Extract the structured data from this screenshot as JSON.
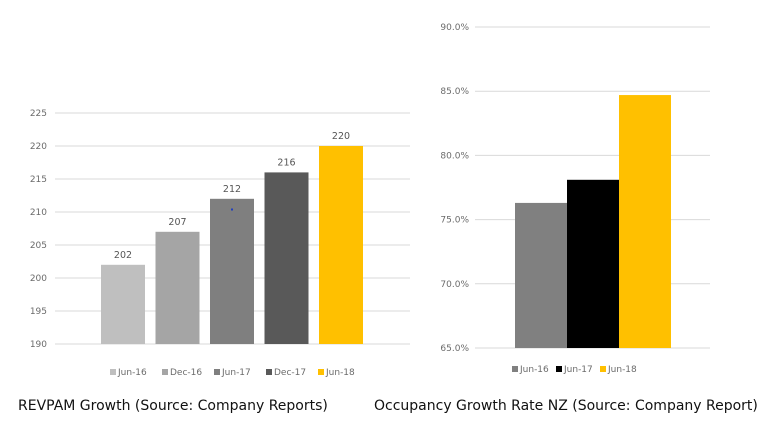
{
  "captions": {
    "left": "REVPAM Growth (Source: Company Reports)",
    "right": "Occupancy Growth Rate NZ (Source: Company Report)"
  },
  "chart_data": [
    {
      "type": "bar",
      "title": "",
      "xlabel": "",
      "ylabel": "",
      "categories": [
        "Jun-16",
        "Dec-16",
        "Jun-17",
        "Dec-17",
        "Jun-18"
      ],
      "values": [
        202,
        207,
        212,
        216,
        220
      ],
      "data_labels": [
        "202",
        "207",
        "212",
        "216",
        "220"
      ],
      "colors": [
        "#bfbfbf",
        "#a5a5a5",
        "#7f7f7f",
        "#595959",
        "#ffc000"
      ],
      "ylim": [
        190,
        225
      ],
      "yticks": [
        190,
        195,
        200,
        205,
        210,
        215,
        220,
        225
      ],
      "ytick_labels": [
        "190",
        "195",
        "200",
        "205",
        "210",
        "215",
        "220",
        "225"
      ],
      "grid": true,
      "legend": "bottom"
    },
    {
      "type": "bar",
      "title": "",
      "xlabel": "",
      "ylabel": "",
      "categories": [
        "Jun-16",
        "Jun-17",
        "Jun-18"
      ],
      "values": [
        76.3,
        78.1,
        84.7
      ],
      "colors": [
        "#808080",
        "#000000",
        "#ffc000"
      ],
      "ylim": [
        65,
        90
      ],
      "yticks": [
        65,
        70,
        75,
        80,
        85,
        90
      ],
      "ytick_labels": [
        "65.0%",
        "70.0%",
        "75.0%",
        "80.0%",
        "85.0%",
        "90.0%"
      ],
      "grid": true,
      "legend": "bottom"
    }
  ]
}
